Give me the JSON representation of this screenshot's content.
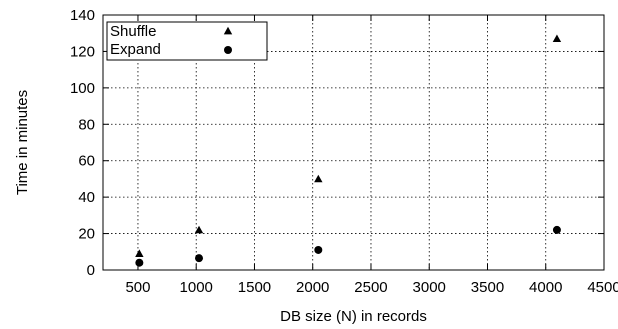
{
  "chart_data": {
    "type": "scatter",
    "title": "",
    "xlabel": "DB size (N) in records",
    "ylabel": "Time in minutes",
    "xlim": [
      200,
      4500
    ],
    "ylim": [
      0,
      140
    ],
    "x_ticks": [
      500,
      1000,
      1500,
      2000,
      2500,
      3000,
      3500,
      4000,
      4500
    ],
    "y_ticks": [
      0,
      20,
      40,
      60,
      80,
      100,
      120,
      140
    ],
    "grid": true,
    "legend_position": "top-left",
    "series": [
      {
        "name": "Shuffle",
        "marker": "triangle",
        "color": "#000000",
        "points": [
          {
            "x": 512,
            "y": 9
          },
          {
            "x": 1024,
            "y": 22
          },
          {
            "x": 2048,
            "y": 50
          },
          {
            "x": 4096,
            "y": 127
          }
        ]
      },
      {
        "name": "Expand",
        "marker": "circle",
        "color": "#000000",
        "points": [
          {
            "x": 512,
            "y": 4
          },
          {
            "x": 1024,
            "y": 6.5
          },
          {
            "x": 2048,
            "y": 11
          },
          {
            "x": 4096,
            "y": 22
          }
        ]
      }
    ]
  }
}
